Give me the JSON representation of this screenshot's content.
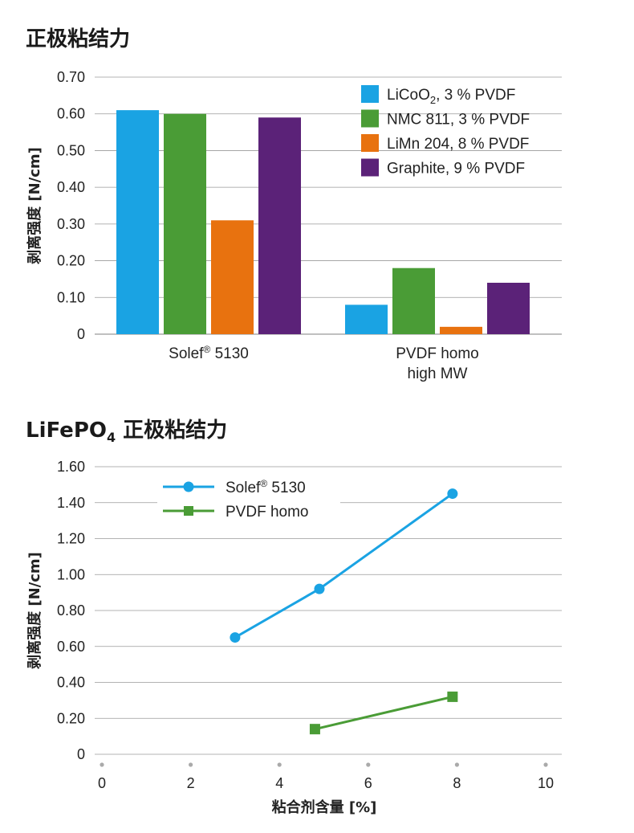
{
  "chart_data": [
    {
      "type": "bar",
      "title": "正极粘结力",
      "ylabel": "剥离强度 [N/cm]",
      "xlabel": "",
      "ylim": [
        0,
        0.7
      ],
      "yticks": [
        "0",
        "0.10",
        "0.20",
        "0.30",
        "0.40",
        "0.50",
        "0.60",
        "0.70"
      ],
      "categories": [
        {
          "line1": "Solef",
          "sup": "®",
          "line1b": " 5130",
          "line2": ""
        },
        {
          "line1": "PVDF homo",
          "sup": "",
          "line1b": "",
          "line2": "high MW"
        }
      ],
      "legend_position": "top-right",
      "series": [
        {
          "name": "LiCoO",
          "sub": "2",
          "suffix": ", 3 % PVDF",
          "color": "#1aa3e3",
          "values": [
            0.61,
            0.08
          ]
        },
        {
          "name": "NMC 811, 3 % PVDF",
          "sub": "",
          "suffix": "",
          "color": "#4a9c36",
          "values": [
            0.6,
            0.18
          ]
        },
        {
          "name": "LiMn 204, 8 % PVDF",
          "sub": "",
          "suffix": "",
          "color": "#e8720f",
          "values": [
            0.31,
            0.02
          ]
        },
        {
          "name": "Graphite, 9 % PVDF",
          "sub": "",
          "suffix": "",
          "color": "#5b2278",
          "values": [
            0.59,
            0.14
          ]
        }
      ]
    },
    {
      "type": "line",
      "title_main": "LiFePO",
      "title_sub": "4",
      "title_rest": " 正极粘结力",
      "ylabel": "剥离强度 [N/cm]",
      "xlabel": "粘合剂含量 [%]",
      "xlim": [
        0,
        10
      ],
      "ylim": [
        0,
        1.6
      ],
      "xticks": [
        "0",
        "2",
        "4",
        "6",
        "8",
        "10"
      ],
      "yticks": [
        "0",
        "0.20",
        "0.40",
        "0.60",
        "0.80",
        "1.00",
        "1.20",
        "1.40",
        "1.60"
      ],
      "legend_position": "top-left",
      "series": [
        {
          "name": "Solef",
          "sup": "®",
          "suffix": " 5130",
          "color": "#1aa3e3",
          "marker": "circle",
          "x": [
            3,
            4.9,
            7.9
          ],
          "y": [
            0.65,
            0.92,
            1.45
          ]
        },
        {
          "name": "PVDF homo",
          "sup": "",
          "suffix": "",
          "color": "#4a9c36",
          "marker": "square",
          "x": [
            4.8,
            7.9
          ],
          "y": [
            0.14,
            0.32
          ]
        }
      ]
    }
  ]
}
